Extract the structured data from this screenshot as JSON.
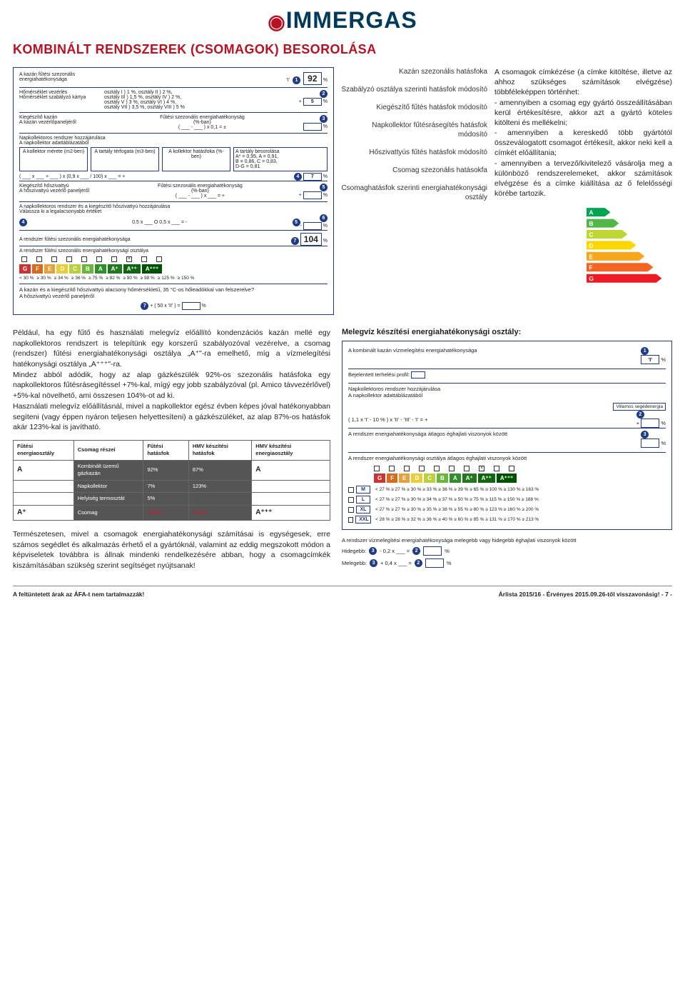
{
  "brand": "IMMERGAS",
  "title": "KOMBINÁLT RENDSZEREK (CSOMAGOK) BESOROLÁSA",
  "label_box": {
    "row1_lbl": "A kazán fűtési szezonális energiahatékonysága",
    "row1_val": "92",
    "row1_right": "'I'",
    "row2_lbl": "Hőmérséklet vezérlés\nHőmérséklet szabályzó kártya",
    "row2_txt": "osztály I ) 1 %, osztály II ) 2 %,\nosztály III ) 1,5 %, osztály IV ) 2 %,\nosztály V ) 3 %, osztály VI ) 4 %,\nosztály VII ) 3,5 %, osztály VIII ) 5 %",
    "row2_val": "5",
    "row3_lbl": "Kiegészítő kazán\nA kazán vezérlőpaneljéről",
    "row3_txt": "Fűtési szezonális energiahatékonyság\n(%-ban)",
    "row3_formula": "( ___ - ___ ) x 0,1 = ±",
    "row4_lbl": "Napkollektoros rendszer hozzájárulása\nA napkollektor adattáblázatából",
    "row4_a": "A kollektor mérete (m2-ben)",
    "row4_b": "A tartály térfogata (m3-ben)",
    "row4_c": "A kollektor hatásfoka (%-ben)",
    "row4_d": "A tartály besorolása\nA* = 0,95, A = 0,91,\nB = 0,86, C = 0,83,\nD-G = 0,81",
    "row4_formula": "( ___ x ___ + ___ ) x (0,9 x ___ / 100) x ___ = +",
    "row4_val": "7",
    "row5_lbl": "Kiegészítő hőszivattyú\nA hőszivattyú vezérlő paneljéről",
    "row5_txt": "Fűtési szezonális energiahatékonyság\n(%-ban)",
    "row5_formula": "( ___ - ___ ) x ___ = +",
    "row6_lbl": "A napkollektoros rendszer és a kiegészítő hőszivattyú hozzájárulása\nVálassza ki a legalacsonyabb értéket",
    "row6_formula": "0,5 x ___  O   0,5 x ___ = -",
    "row7_lbl": "A rendszer fűtési szezonális energiahatékonysága",
    "row7_val": "104",
    "row8_lbl": "A rendszer fűtési szezonális energiahatékonysági osztálya",
    "note1": "A kazán és a kiegészítő hőszivattyú alacsony hőmérsékletű, 35 °C-os hőleadókkal van felszerelve?\nA hőszivattyú vezérlő paneljéről",
    "note1_formula": "+ ( 50 x 'II' ) ="
  },
  "side_labels": {
    "s1": "Kazán szezonális hatásfoka",
    "s2": "Szabályzó osztálya szerinti hatásfok módosító",
    "s3": "Kiegészítő fűtés hatásfok módosító",
    "s4": "Napkollektor fűtésrásegítés hatásfok módosító",
    "s5": "Hőszivattyús fűtés hatásfok módosító",
    "s6": "Csomag szezonális hatásokfa",
    "s7": "Csomaghatásfok szerinti energiahatékonysági osztály"
  },
  "explanation": "A csomagok címkézése (a címke kitöltése, illetve az ahhoz szükséges számítások elvégzése) többféleképpen történhet:\n- amennyiben a csomag egy gyártó összeállításában kerül értékesítésre, akkor azt a gyártó köteles kitölteni és mellékelni;\n- amennyiben a kereskedő több gyártótól összeválogatott csomagot értékesít, akkor neki kell a címkét előállítania;\n- amennyiben a tervező/kivitelező vásárolja meg a különböző rendszerelemeket, akkor számítások elvégzése és a címke kiállítása az ő felelősségi körébe tartozik.",
  "para2": "Például, ha egy fűtő és használati melegvíz előállító kondenzációs kazán mellé egy napkollektoros rendszert is telepítünk egy korszerű szabályozóval vezérelve, a csomag (rendszer) fűtési energiahatékonysági osztálya „A⁺\"-ra emelhető, míg a vízmelegítési hatékonysági osztálya „A⁺⁺⁺\"-ra.\nMindez abból adódik, hogy az alap gázkészülék 92%-os szezonális hatásfoka egy napkollektoros fűtésrásegítéssel +7%-kal, mígý egy jobb szabályzóval (pl. Amico távvezérlővel) +5%-kal növelhető, ami összesen 104%-ot ad ki.\nHasználati melegvíz előállításnál, mivel a napkollektor egész évben képes jóval hatékonyabban segíteni (vagy éppen nyáron teljesen helyettesíteni) a gázkészüléket, az alap 87%-os hatásfok akár 123%-kal is javítható.",
  "para3": "Természetesen, mivel a csomagok energiahatékonysági számításai is egységesek, erre számos segédlet és alkalmazás érhető el a gyártóknál, valamint az eddig megszokott módon a képviseletek továbbra is állnak mindenki rendelkezésére abban, hogy a csomagcímkék kiszámításában szükség szerint segítséget nyújtsanak!",
  "class_chips": [
    {
      "lbl": "G",
      "bg": "#cc3333"
    },
    {
      "lbl": "F",
      "bg": "#d96b1f"
    },
    {
      "lbl": "E",
      "bg": "#e8a13a"
    },
    {
      "lbl": "D",
      "bg": "#e8cf3a"
    },
    {
      "lbl": "C",
      "bg": "#b9d13a"
    },
    {
      "lbl": "B",
      "bg": "#6bb63a"
    },
    {
      "lbl": "A",
      "bg": "#2f8f2f"
    },
    {
      "lbl": "A⁺",
      "bg": "#1f7a1f"
    },
    {
      "lbl": "A⁺⁺",
      "bg": "#116611"
    },
    {
      "lbl": "A⁺⁺⁺",
      "bg": "#005200"
    }
  ],
  "thresholds": [
    "< 30 %",
    "≥ 30 %",
    "≥ 34 %",
    "≥ 36 %",
    "≥ 75 %",
    "≥ 82 %",
    "≥ 90 %",
    "≥ 98 %",
    "≥ 125 %",
    "≥ 150 %"
  ],
  "arrow_chart": {
    "labels": [
      "A",
      "B",
      "C",
      "D",
      "E",
      "F",
      "G"
    ],
    "colors": [
      "#00a651",
      "#50b848",
      "#bed630",
      "#fcd700",
      "#f9a61a",
      "#f26522",
      "#ed1c24"
    ]
  },
  "pkg_table": {
    "headers": [
      "Fűtési energiaosztály",
      "Csomag részei",
      "Fűtési hatásfok",
      "HMV készítési hatásfok",
      "HMV készítési energiaosztály"
    ],
    "rows": [
      {
        "c0": "A",
        "c1": "Kombinált üzemű gázkazán",
        "c2": "92%",
        "c3": "87%",
        "c4": "A",
        "dark": true
      },
      {
        "c0": "",
        "c1": "Napkollektor",
        "c2": "7%",
        "c3": "123%",
        "c4": "",
        "dark": true
      },
      {
        "c0": "",
        "c1": "Helyiség termosztát",
        "c2": "5%",
        "c3": "",
        "c4": "",
        "dark": true
      },
      {
        "c0": "A⁺",
        "c1": "Csomag",
        "c2": "104%",
        "c3": "210%",
        "c4": "A⁺⁺⁺",
        "dark": true,
        "red": true
      }
    ]
  },
  "wh_title": "Melegvíz készítési energiahatékonysági osztály:",
  "wh_box": {
    "r1": "A kombinált kazán vízmelegítési energiahatékonysága",
    "r1_right": "'I'",
    "r2": "Bejelentett terhelési profil:",
    "r3": "Napkollektoros rendszer hozzájárulása\nA napkollektor adattáblázatából",
    "r3_callout": "Villamos segédenergia",
    "r3_formula": "( 1,1 x 'I' - 10 % ) x 'II' - 'III' - 'I' = +",
    "r4": "A rendszer energiahatékonysága átlagos éghajlati viszonyok között",
    "r5": "A rendszer energiahatékonysági osztálya átlagos éghajlati viszonyok között",
    "sizes": [
      {
        "s": "M",
        "t": "< 27 % ≥ 27 % ≥ 30 % ≥ 33 % ≥ 36 % ≥ 39 % ≥ 65 % ≥ 100 % ≥ 130 % ≥ 163 %"
      },
      {
        "s": "L",
        "t": "< 27 % ≥ 27 % ≥ 30 % ≥ 34 % ≥ 37 % ≥ 50 % ≥ 75 % ≥ 115 % ≥ 150 % ≥ 188 %"
      },
      {
        "s": "XL",
        "t": "< 27 % ≥ 27 % ≥ 30 % ≥ 35 % ≥ 38 % ≥ 55 % ≥ 80 % ≥ 123 % ≥ 160 % ≥ 200 %"
      },
      {
        "s": "XXL",
        "t": "< 28 % ≥ 28 % ≥ 32 % ≥ 36 % ≥ 40 % ≥ 60 % ≥ 85 % ≥ 131 % ≥ 170 % ≥ 213 %"
      }
    ],
    "bottom": "A rendszer vízmelegítési energiahatékonysága melegebb vagy hidegebb éghajlati viszonyok között",
    "hidegebb": "Hidegebb:",
    "hidegebb_f": "- 0,2 x ___ =",
    "melegebb": "Melegebb:",
    "melegebb_f": "+ 0,4 x ___ ="
  },
  "footer_left": "A feltüntetett árak az ÁFA-t nem tartalmazzák!",
  "footer_right": "Árlista 2015/16 - Érvényes 2015.09.26-től visszavonásig!   - 7 -"
}
